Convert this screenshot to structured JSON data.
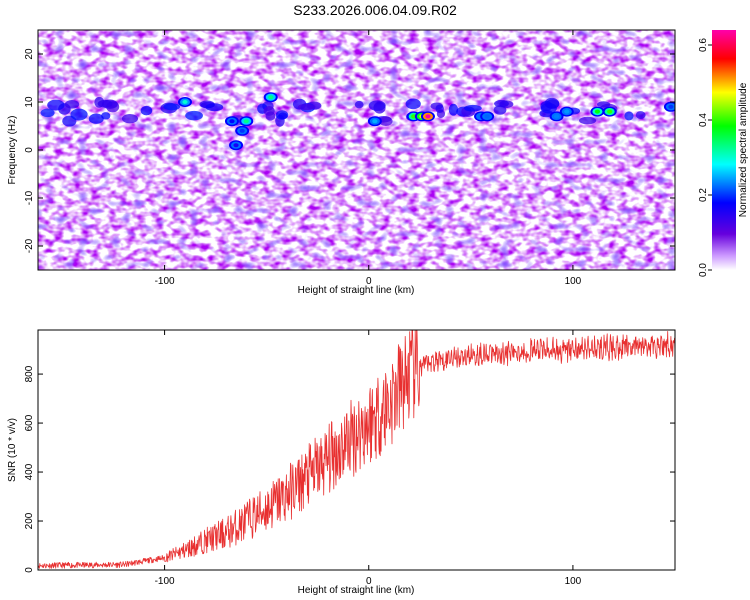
{
  "title": "S233.2026.006.04.09.R02",
  "chart_data": [
    {
      "type": "heatmap",
      "xlabel": "Height of straight line (km)",
      "ylabel": "Frequency (Hz)",
      "xlim": [
        -162,
        150
      ],
      "ylim": [
        -25,
        25
      ],
      "xticks": [
        -100,
        0,
        100
      ],
      "yticks": [
        -20,
        -10,
        0,
        10,
        20
      ],
      "colorbar": {
        "label": "Normalized spectral amplitude",
        "range": [
          0,
          0.64
        ],
        "ticks": [
          0.0,
          0.2,
          0.4,
          0.6
        ]
      },
      "hotspots": [
        {
          "x": -90,
          "y": 10,
          "v": 0.3
        },
        {
          "x": -67,
          "y": 6,
          "v": 0.18
        },
        {
          "x": -60,
          "y": 6,
          "v": 0.33
        },
        {
          "x": -62,
          "y": 4,
          "v": 0.2
        },
        {
          "x": -65,
          "y": 1,
          "v": 0.16
        },
        {
          "x": -48,
          "y": 11,
          "v": 0.33
        },
        {
          "x": 3,
          "y": 6,
          "v": 0.25
        },
        {
          "x": 22,
          "y": 7,
          "v": 0.4
        },
        {
          "x": 26,
          "y": 7,
          "v": 0.46
        },
        {
          "x": 29,
          "y": 7,
          "v": 0.64
        },
        {
          "x": 55,
          "y": 7,
          "v": 0.22
        },
        {
          "x": 58,
          "y": 7,
          "v": 0.22
        },
        {
          "x": 92,
          "y": 7,
          "v": 0.23
        },
        {
          "x": 97,
          "y": 8,
          "v": 0.24
        },
        {
          "x": 112,
          "y": 8,
          "v": 0.38
        },
        {
          "x": 118,
          "y": 8,
          "v": 0.4
        },
        {
          "x": 148,
          "y": 9,
          "v": 0.2
        }
      ],
      "color_range": [
        "#ffffff",
        "#6600dd",
        "#0000ff",
        "#00ffff",
        "#00ff00",
        "#ffff00",
        "#ff0000",
        "#ff00aa"
      ]
    },
    {
      "type": "line",
      "xlabel": "Height of straight line (km)",
      "ylabel": "SNR (10 * v/v)",
      "xlim": [
        -162,
        150
      ],
      "ylim": [
        0,
        980
      ],
      "xticks": [
        -100,
        0,
        100
      ],
      "yticks": [
        0,
        200,
        400,
        600,
        800
      ],
      "color": "#e83030",
      "profile": [
        [
          -162,
          18
        ],
        [
          -140,
          20
        ],
        [
          -120,
          22
        ],
        [
          -100,
          50
        ],
        [
          -90,
          80
        ],
        [
          -80,
          120
        ],
        [
          -70,
          150
        ],
        [
          -60,
          200
        ],
        [
          -50,
          250
        ],
        [
          -40,
          310
        ],
        [
          -30,
          380
        ],
        [
          -20,
          450
        ],
        [
          -10,
          530
        ],
        [
          0,
          600
        ],
        [
          10,
          680
        ],
        [
          20,
          800
        ],
        [
          30,
          850
        ],
        [
          40,
          870
        ],
        [
          60,
          885
        ],
        [
          80,
          895
        ],
        [
          100,
          900
        ],
        [
          120,
          910
        ],
        [
          150,
          920
        ]
      ]
    }
  ]
}
